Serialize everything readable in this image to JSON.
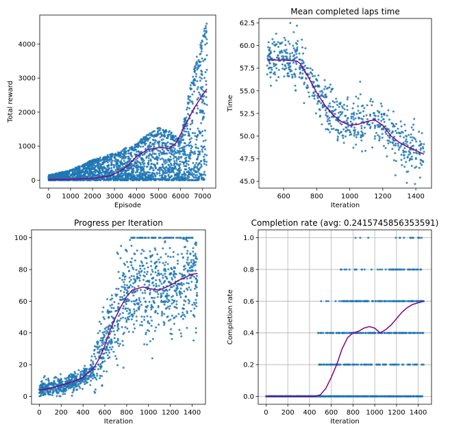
{
  "chart_data": [
    {
      "type": "scatter",
      "title": "",
      "xlabel": "Episode",
      "ylabel": "Total reward",
      "xlim": [
        -400,
        7600
      ],
      "ylim": [
        -230,
        4850
      ],
      "xticks": [
        "0",
        "1000",
        "2000",
        "3000",
        "4000",
        "5000",
        "6000",
        "7000"
      ],
      "yticks": [
        "0",
        "1000",
        "2000",
        "3000",
        "4000"
      ],
      "grid": false,
      "x_range": [
        0,
        7200
      ],
      "points_note_hidden": true,
      "scatter_color": "#1f77b4",
      "trend_color": "#800080",
      "trend": {
        "x": [
          0,
          1000,
          2000,
          2800,
          3200,
          3600,
          4000,
          4500,
          5000,
          5500,
          5800,
          6200,
          6600,
          7000,
          7200
        ],
        "y": [
          20,
          30,
          60,
          130,
          250,
          420,
          700,
          900,
          960,
          940,
          1100,
          1600,
          2100,
          2500,
          2680
        ]
      },
      "envelope": {
        "x": [
          0,
          1000,
          2000,
          3000,
          4000,
          4500,
          5000,
          5500,
          6000,
          6500,
          7000,
          7200
        ],
        "max": [
          150,
          300,
          600,
          800,
          1100,
          1350,
          1550,
          1450,
          1200,
          3000,
          4300,
          4650
        ]
      }
    },
    {
      "type": "scatter",
      "title": "Mean completed laps time",
      "xlabel": "Iteration",
      "ylabel": "Time",
      "xlim": [
        450,
        1495
      ],
      "ylim": [
        44.25,
        63.0
      ],
      "xticks": [
        "600",
        "800",
        "1000",
        "1200",
        "1400"
      ],
      "yticks": [
        "45.0",
        "47.5",
        "50.0",
        "52.5",
        "55.0",
        "57.5",
        "60.0",
        "62.5"
      ],
      "grid": false,
      "x_range": [
        500,
        1450
      ],
      "scatter_color": "#1f77b4",
      "trend_color": "#800080",
      "trend": {
        "x": [
          500,
          600,
          680,
          700,
          750,
          800,
          850,
          900,
          950,
          1000,
          1050,
          1100,
          1150,
          1200,
          1250,
          1300,
          1350,
          1400,
          1450
        ],
        "y": [
          58.4,
          58.4,
          58.3,
          58.0,
          56.5,
          54.8,
          53.4,
          52.3,
          51.6,
          51.2,
          51.3,
          51.6,
          51.8,
          51.2,
          50.0,
          49.3,
          48.8,
          48.4,
          48.0
        ]
      }
    },
    {
      "type": "scatter",
      "title": "Progress per Iteration",
      "xlabel": "Iteration",
      "ylabel": "",
      "xlim": [
        -72,
        1522
      ],
      "ylim": [
        -5,
        105
      ],
      "xticks": [
        "0",
        "200",
        "400",
        "600",
        "800",
        "1000",
        "1200",
        "1400"
      ],
      "yticks": [
        "0",
        "20",
        "40",
        "60",
        "80",
        "100"
      ],
      "grid": false,
      "x_range": [
        0,
        1450
      ],
      "scatter_color": "#1f77b4",
      "trend_color": "#800080",
      "trend": {
        "x": [
          0,
          100,
          200,
          300,
          400,
          450,
          500,
          550,
          600,
          650,
          700,
          750,
          800,
          850,
          900,
          950,
          1000,
          1100,
          1200,
          1300,
          1400,
          1450
        ],
        "y": [
          4,
          5,
          7,
          9,
          12,
          15,
          18,
          24,
          32,
          42,
          50,
          57,
          63,
          67,
          68,
          69,
          68,
          67,
          70,
          74,
          77,
          77.5
        ]
      }
    },
    {
      "type": "scatter",
      "title": "Completion rate (avg: 0.2415745856353591)",
      "xlabel": "Iteration",
      "ylabel": "Completion rate",
      "xlim": [
        -72,
        1522
      ],
      "ylim": [
        -0.05,
        1.05
      ],
      "xticks": [
        "0",
        "200",
        "400",
        "600",
        "800",
        "1000",
        "1200",
        "1400"
      ],
      "yticks": [
        "0.0",
        "0.2",
        "0.4",
        "0.6",
        "0.8",
        "1.0"
      ],
      "grid": true,
      "levels": [
        0.0,
        0.2,
        0.4,
        0.6,
        0.8,
        1.0
      ],
      "scatter_color": "#1f77b4",
      "trend_color": "#800080",
      "trend": {
        "x": [
          0,
          300,
          450,
          500,
          550,
          600,
          650,
          700,
          750,
          800,
          850,
          900,
          950,
          1000,
          1050,
          1100,
          1150,
          1200,
          1250,
          1300,
          1350,
          1400,
          1450
        ],
        "y": [
          0.0,
          0.0,
          0.0,
          0.01,
          0.05,
          0.12,
          0.2,
          0.3,
          0.37,
          0.4,
          0.41,
          0.43,
          0.44,
          0.43,
          0.4,
          0.42,
          0.45,
          0.49,
          0.53,
          0.56,
          0.58,
          0.59,
          0.6
        ]
      }
    }
  ]
}
